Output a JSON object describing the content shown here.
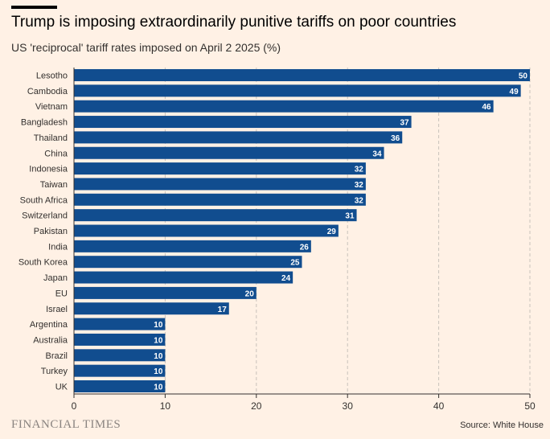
{
  "header": {
    "title": "Trump is imposing extraordinarily punitive tariffs on poor countries",
    "subtitle": "US 'reciprocal' tariff rates imposed on April 2 2025 (%)"
  },
  "footer": {
    "brand": "FINANCIAL TIMES",
    "source": "Source: White House"
  },
  "colors": {
    "bar": "#114d8f",
    "background": "#fff1e5",
    "grid": "#c9c2bb",
    "axis": "#33302e"
  },
  "chart_data": {
    "type": "bar",
    "orientation": "horizontal",
    "categories": [
      "Lesotho",
      "Cambodia",
      "Vietnam",
      "Bangladesh",
      "Thailand",
      "China",
      "Indonesia",
      "Taiwan",
      "South Africa",
      "Switzerland",
      "Pakistan",
      "India",
      "South Korea",
      "Japan",
      "EU",
      "Israel",
      "Argentina",
      "Australia",
      "Brazil",
      "Turkey",
      "UK"
    ],
    "values": [
      50,
      49,
      46,
      37,
      36,
      34,
      32,
      32,
      32,
      31,
      29,
      26,
      25,
      24,
      20,
      17,
      10,
      10,
      10,
      10,
      10
    ],
    "xlim": [
      0,
      50
    ],
    "xticks": [
      0,
      10,
      20,
      30,
      40,
      50
    ],
    "grid": "vertical dashed",
    "data_labels": true
  }
}
